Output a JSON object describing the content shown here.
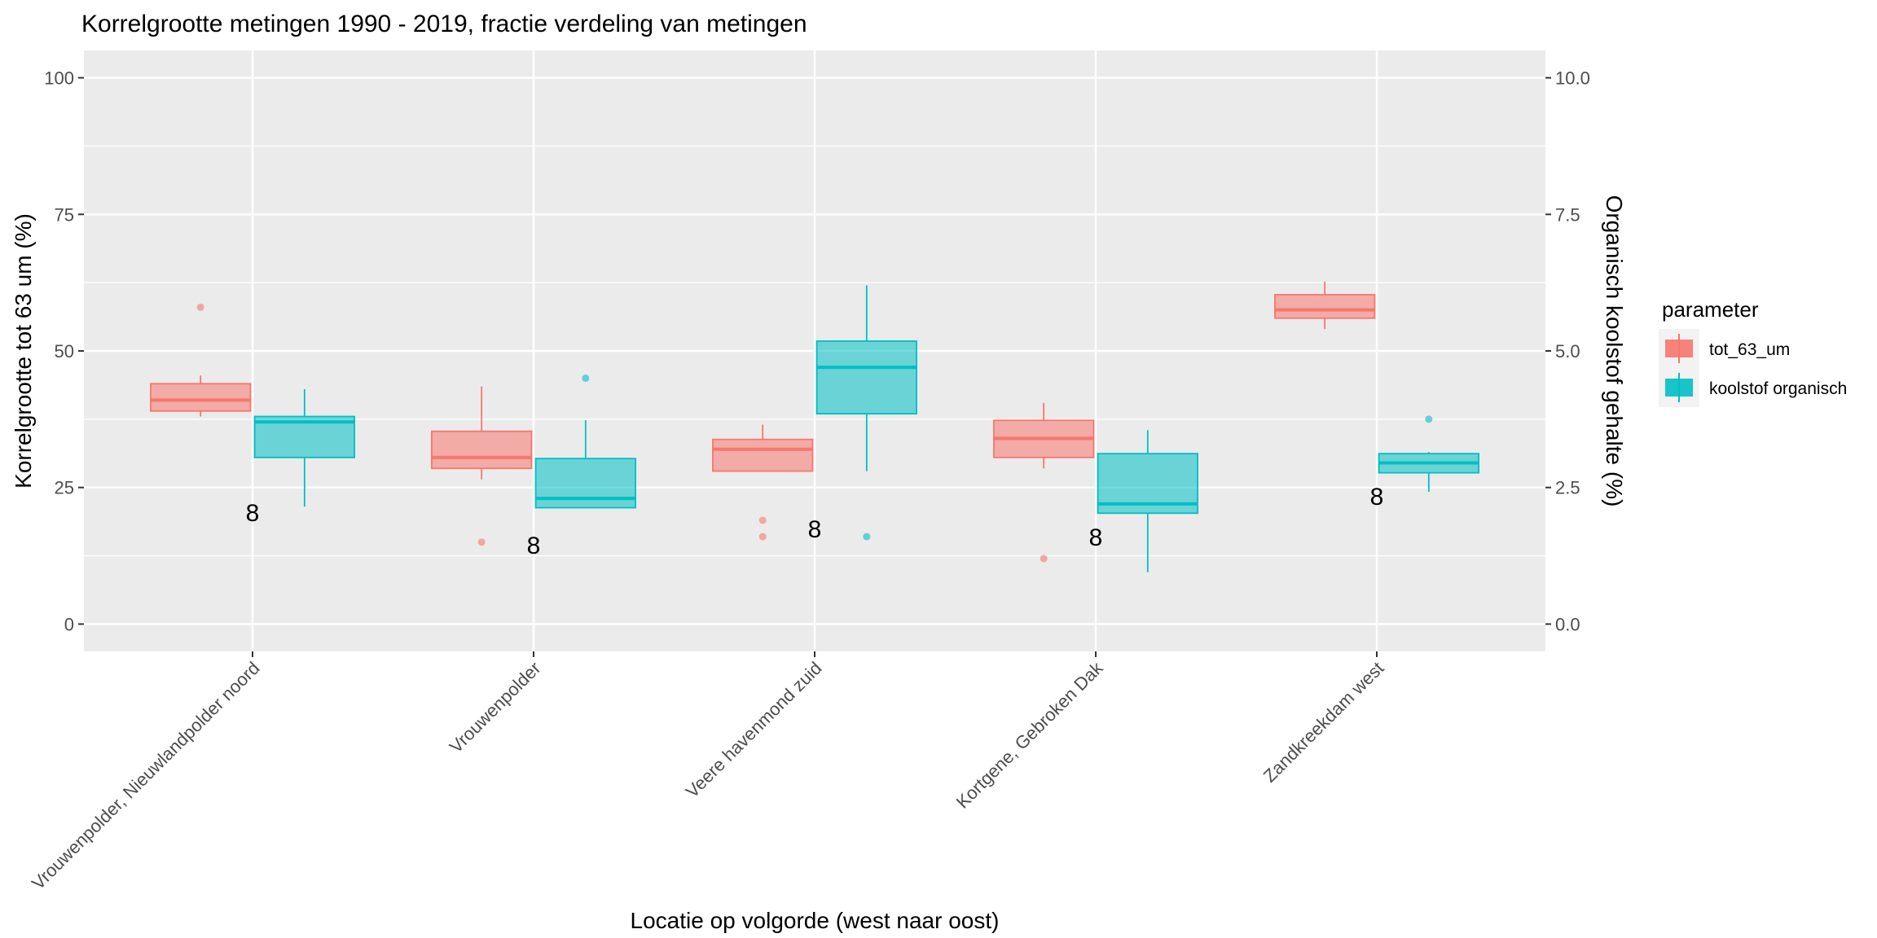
{
  "chart_data": {
    "type": "box",
    "title": "Korrelgrootte metingen 1990 - 2019, fractie verdeling van metingen",
    "xlabel": "Locatie op volgorde (west naar oost)",
    "ylabel": "Korrelgrootte tot 63 um (%)",
    "y2label": "Organisch koolstof gehalte (%)",
    "ylim": [
      -5,
      105
    ],
    "y2lim": [
      -0.5,
      10.5
    ],
    "yticks": [
      0,
      25,
      50,
      75,
      100
    ],
    "yticklabels": [
      "0",
      "25",
      "50",
      "75",
      "100"
    ],
    "y2ticks": [
      0,
      2.5,
      5,
      7.5,
      10
    ],
    "y2ticklabels": [
      "0.0",
      "2.5",
      "5.0",
      "7.5",
      "10.0"
    ],
    "grid": true,
    "legend": {
      "title": "parameter",
      "position": "right",
      "entries": [
        {
          "label": "tot_63_um",
          "color": "#F8766D"
        },
        {
          "label": "koolstof organisch",
          "color": "#00BFC4"
        }
      ]
    },
    "categories": [
      "Vrouwenpolder, Nieuwlandpolder noord",
      "Vrouwenpolder",
      "Veere havenmond zuid",
      "Kortgene, Gebroken Dak",
      "Zandkreekdam west"
    ],
    "count_labels": [
      {
        "category": 0,
        "label": "8",
        "y": 20.5
      },
      {
        "category": 1,
        "label": "8",
        "y": 14.5
      },
      {
        "category": 2,
        "label": "8",
        "y": 17.5
      },
      {
        "category": 3,
        "label": "8",
        "y": 16
      },
      {
        "category": 4,
        "label": "8",
        "y": 23.5
      }
    ],
    "series": [
      {
        "name": "tot_63_um",
        "color": "#F8766D",
        "boxes": [
          {
            "whisker_low": 38,
            "q1": 39,
            "median": 41,
            "q3": 44,
            "whisker_high": 45.5,
            "outliers": [
              58
            ]
          },
          {
            "whisker_low": 26.5,
            "q1": 28.5,
            "median": 30.5,
            "q3": 35.3,
            "whisker_high": 43.5,
            "outliers": [
              15
            ]
          },
          {
            "whisker_low": 28,
            "q1": 28,
            "median": 32,
            "q3": 33.8,
            "whisker_high": 36.5,
            "outliers": [
              19,
              16
            ]
          },
          {
            "whisker_low": 28.5,
            "q1": 30.5,
            "median": 34,
            "q3": 37.3,
            "whisker_high": 40.5,
            "outliers": [
              12
            ]
          },
          {
            "whisker_low": 54,
            "q1": 56,
            "median": 57.5,
            "q3": 60.3,
            "whisker_high": 62.7,
            "outliers": []
          }
        ]
      },
      {
        "name": "koolstof organisch",
        "color": "#00BFC4",
        "boxes": [
          {
            "whisker_low": 2.15,
            "q1": 3.05,
            "median": 3.7,
            "q3": 3.8,
            "whisker_high": 4.3,
            "outliers": []
          },
          {
            "whisker_low": 2.13,
            "q1": 2.13,
            "median": 2.3,
            "q3": 3.03,
            "whisker_high": 3.73,
            "outliers": [
              4.5
            ]
          },
          {
            "whisker_low": 2.8,
            "q1": 3.85,
            "median": 4.7,
            "q3": 5.18,
            "whisker_high": 6.2,
            "outliers": [
              1.6
            ]
          },
          {
            "whisker_low": 0.95,
            "q1": 2.03,
            "median": 2.2,
            "q3": 3.12,
            "whisker_high": 3.55,
            "outliers": []
          },
          {
            "whisker_low": 2.42,
            "q1": 2.77,
            "median": 2.95,
            "q3": 3.12,
            "whisker_high": 3.15,
            "outliers": [
              3.75
            ]
          }
        ]
      }
    ]
  }
}
